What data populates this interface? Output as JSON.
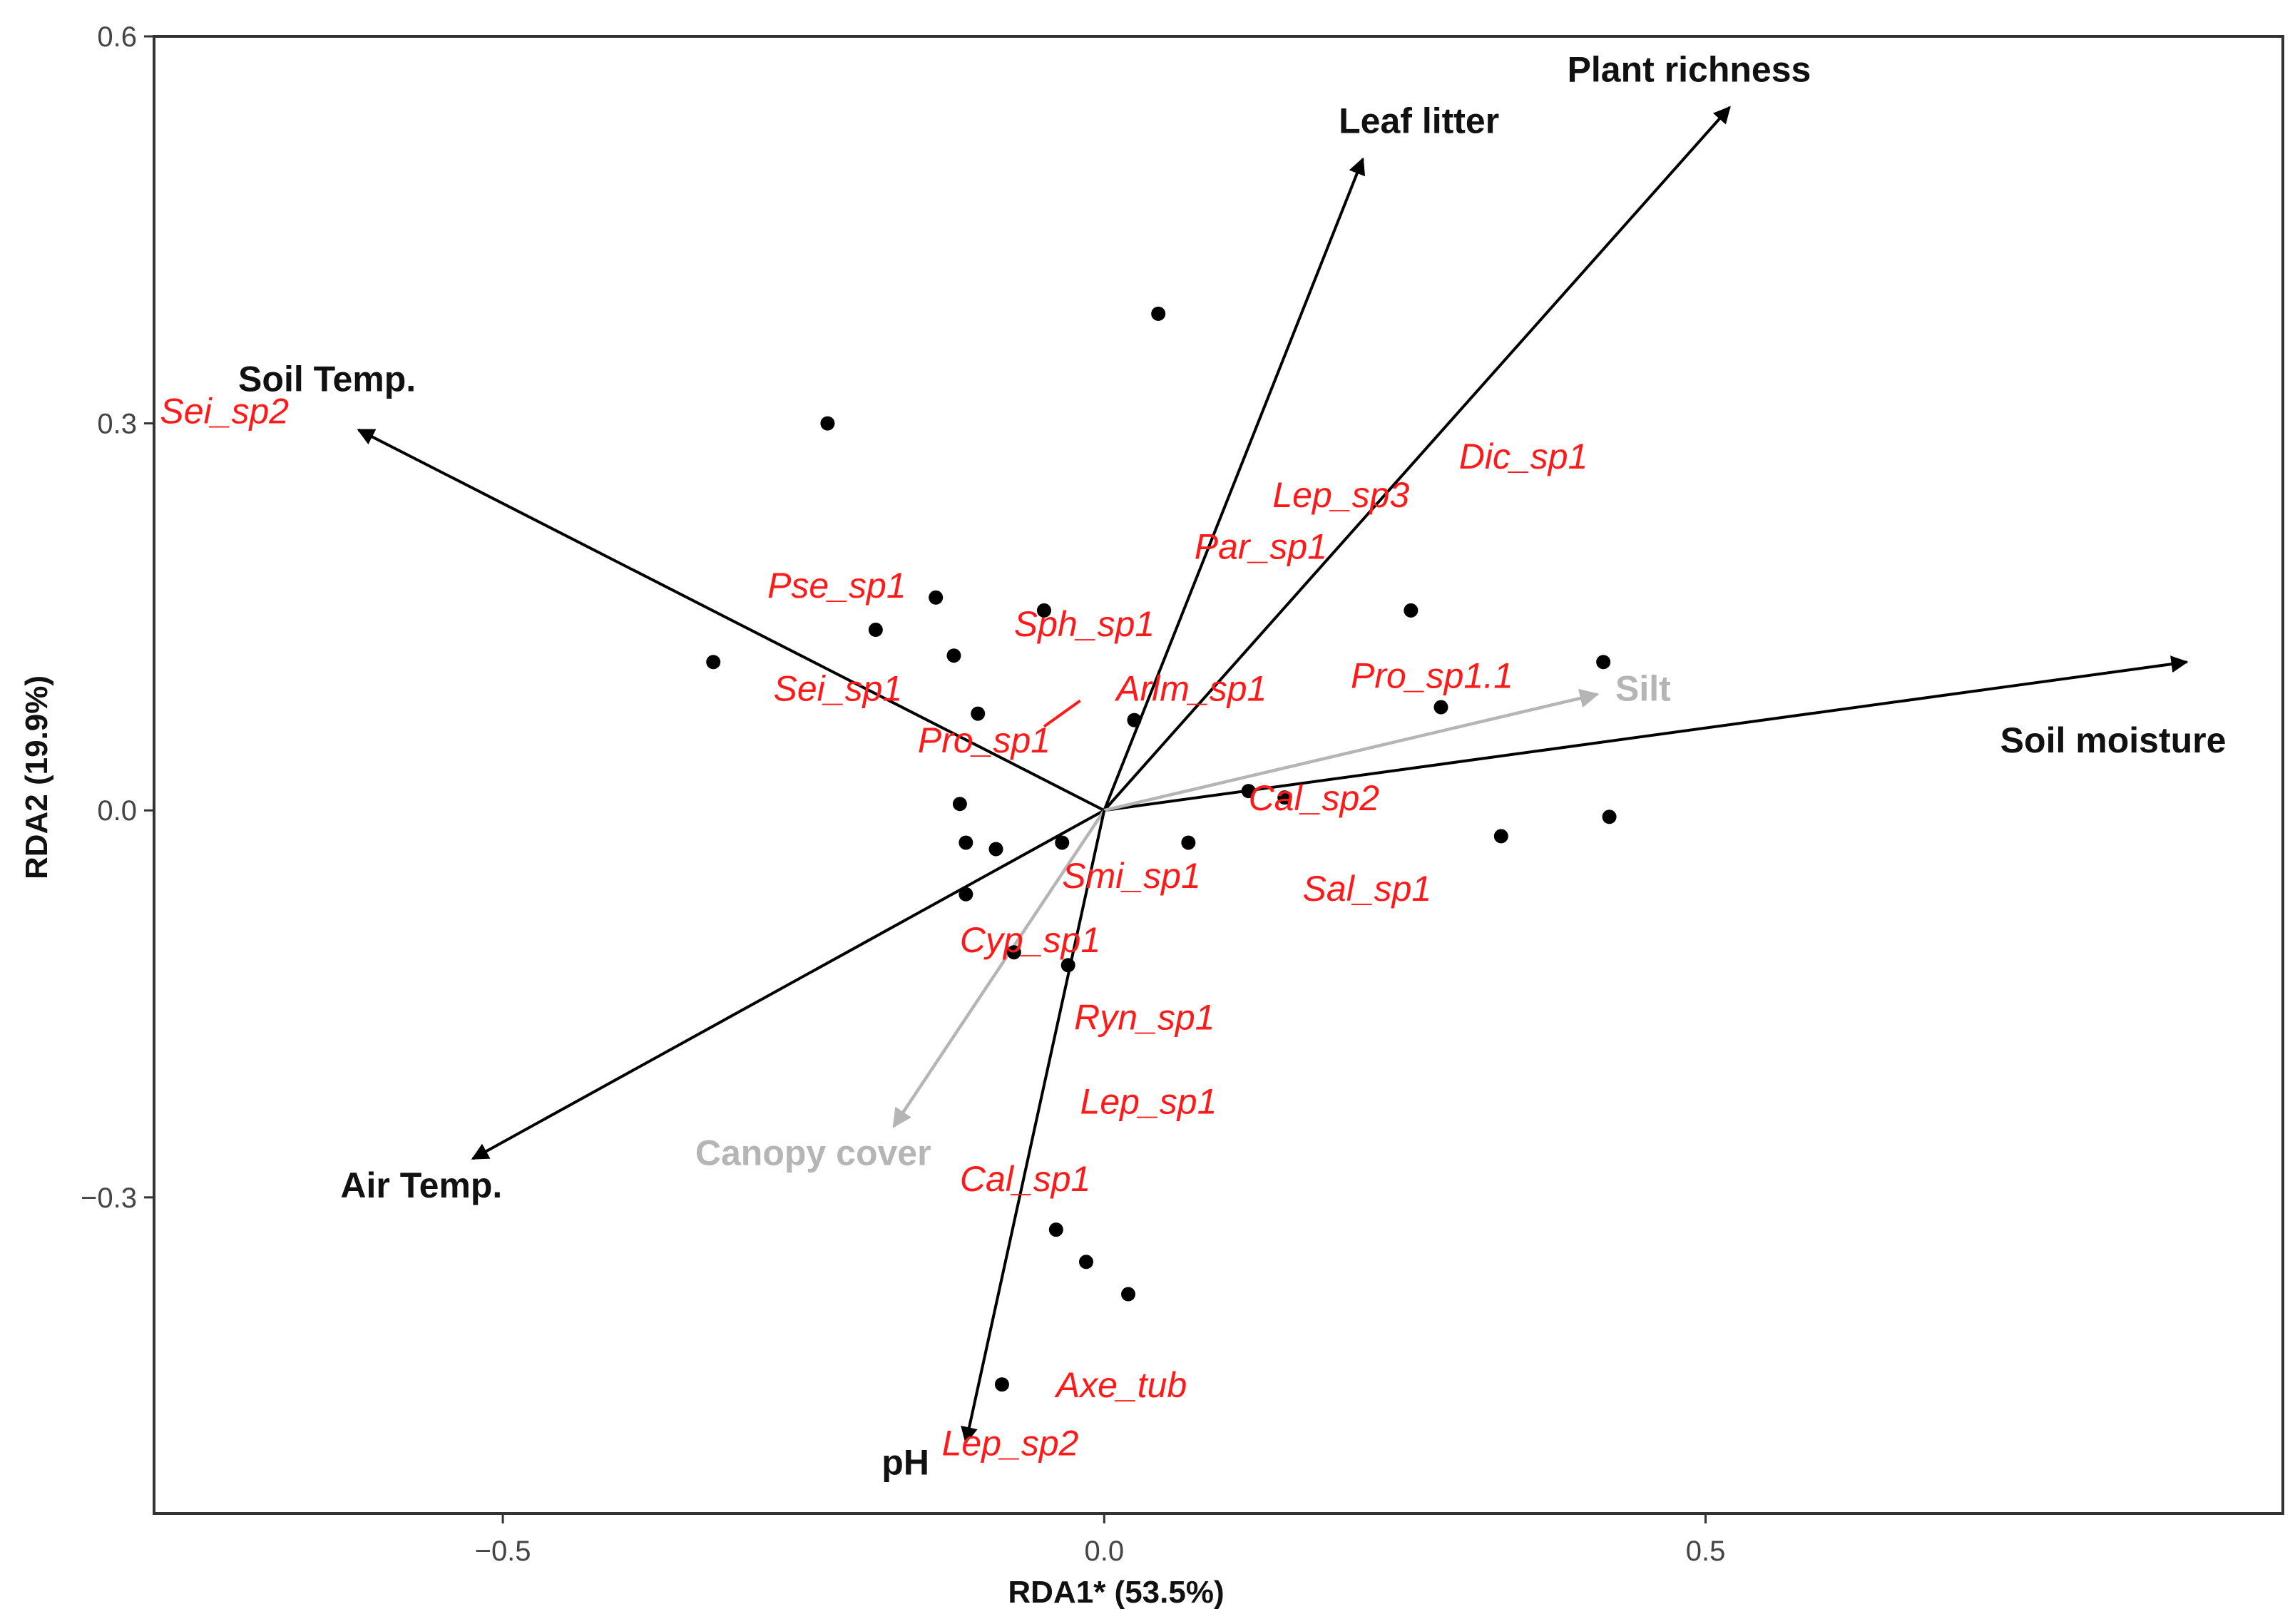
{
  "chart_data": {
    "type": "scatter",
    "subtype": "rda-biplot",
    "title": "",
    "xlabel": "RDA1* (53.5%)",
    "ylabel": "RDA2 (19.9%)",
    "xlim": [
      -0.79,
      0.98
    ],
    "ylim": [
      -0.545,
      0.6
    ],
    "x_ticks": [
      -0.5,
      0.0,
      0.5
    ],
    "x_tick_labels": [
      "−0.5",
      "0.0",
      "0.5"
    ],
    "y_ticks": [
      -0.3,
      0.0,
      0.3,
      0.6
    ],
    "y_tick_labels": [
      "−0.3",
      "0.0",
      "0.3",
      "0.6"
    ],
    "grid": false,
    "colors": {
      "arrow_black": "#000000",
      "arrow_grey": "#b5b5b5",
      "species": "#ff1a1a",
      "points": "#000000",
      "frame": "#333333"
    },
    "vectors": [
      {
        "name": "Leaf litter",
        "x": 0.215,
        "y": 0.505,
        "color": "black",
        "label_x": 0.195,
        "label_y": 0.525
      },
      {
        "name": "Plant richness",
        "x": 0.52,
        "y": 0.545,
        "color": "black",
        "label_x": 0.385,
        "label_y": 0.565
      },
      {
        "name": "Soil Temp.",
        "x": -0.62,
        "y": 0.295,
        "color": "black",
        "label_x": -0.72,
        "label_y": 0.325
      },
      {
        "name": "Soil moisture",
        "x": 0.9,
        "y": 0.115,
        "color": "black",
        "label_x": 0.745,
        "label_y": 0.045
      },
      {
        "name": "Silt",
        "x": 0.41,
        "y": 0.09,
        "color": "grey",
        "label_x": 0.425,
        "label_y": 0.085
      },
      {
        "name": "Air Temp.",
        "x": -0.525,
        "y": -0.27,
        "color": "black",
        "label_x": -0.635,
        "label_y": -0.3
      },
      {
        "name": "Canopy cover",
        "x": -0.175,
        "y": -0.245,
        "color": "grey",
        "label_x": -0.34,
        "label_y": -0.275
      },
      {
        "name": "pH",
        "x": -0.115,
        "y": -0.49,
        "color": "black",
        "label_x": -0.185,
        "label_y": -0.515
      }
    ],
    "species": [
      {
        "name": "Sei_sp2",
        "x": -0.785,
        "y": 0.3
      },
      {
        "name": "Dic_sp1",
        "x": 0.295,
        "y": 0.265
      },
      {
        "name": "Lep_sp3",
        "x": 0.14,
        "y": 0.235
      },
      {
        "name": "Par_sp1",
        "x": 0.075,
        "y": 0.195
      },
      {
        "name": "Pse_sp1",
        "x": -0.28,
        "y": 0.165
      },
      {
        "name": "Sph_sp1",
        "x": -0.075,
        "y": 0.135
      },
      {
        "name": "Sei_sp1",
        "x": -0.275,
        "y": 0.085
      },
      {
        "name": "Arlm_sp1",
        "x": 0.01,
        "y": 0.085
      },
      {
        "name": "Pro_sp1.1",
        "x": 0.205,
        "y": 0.095
      },
      {
        "name": "Pro_sp1",
        "x": -0.155,
        "y": 0.045
      },
      {
        "name": "Cal_sp2",
        "x": 0.12,
        "y": 0.0
      },
      {
        "name": "Smi_sp1",
        "x": -0.035,
        "y": -0.06
      },
      {
        "name": "Sal_sp1",
        "x": 0.165,
        "y": -0.07
      },
      {
        "name": "Cyp_sp1",
        "x": -0.12,
        "y": -0.11
      },
      {
        "name": "Ryn_sp1",
        "x": -0.025,
        "y": -0.17
      },
      {
        "name": "Lep_sp1",
        "x": -0.02,
        "y": -0.235
      },
      {
        "name": "Cal_sp1",
        "x": -0.12,
        "y": -0.295
      },
      {
        "name": "Axe_tub",
        "x": -0.04,
        "y": -0.455
      },
      {
        "name": "Lep_sp2",
        "x": -0.135,
        "y": -0.5
      }
    ],
    "sites": [
      {
        "x": 0.045,
        "y": 0.385
      },
      {
        "x": -0.23,
        "y": 0.3
      },
      {
        "x": -0.14,
        "y": 0.165
      },
      {
        "x": -0.19,
        "y": 0.14
      },
      {
        "x": -0.05,
        "y": 0.155
      },
      {
        "x": -0.125,
        "y": 0.12
      },
      {
        "x": -0.325,
        "y": 0.115
      },
      {
        "x": -0.105,
        "y": 0.075
      },
      {
        "x": 0.025,
        "y": 0.07
      },
      {
        "x": 0.255,
        "y": 0.155
      },
      {
        "x": 0.415,
        "y": 0.115
      },
      {
        "x": 0.28,
        "y": 0.08
      },
      {
        "x": -0.12,
        "y": 0.005
      },
      {
        "x": -0.115,
        "y": -0.025
      },
      {
        "x": -0.09,
        "y": -0.03
      },
      {
        "x": -0.035,
        "y": -0.025
      },
      {
        "x": 0.07,
        "y": -0.025
      },
      {
        "x": 0.12,
        "y": 0.015
      },
      {
        "x": 0.15,
        "y": 0.01
      },
      {
        "x": 0.33,
        "y": -0.02
      },
      {
        "x": 0.42,
        "y": -0.005
      },
      {
        "x": -0.115,
        "y": -0.065
      },
      {
        "x": -0.075,
        "y": -0.11
      },
      {
        "x": -0.03,
        "y": -0.12
      },
      {
        "x": -0.04,
        "y": -0.325
      },
      {
        "x": -0.015,
        "y": -0.35
      },
      {
        "x": 0.02,
        "y": -0.375
      },
      {
        "x": -0.085,
        "y": -0.445
      }
    ],
    "stray_marks": [
      {
        "x1": -0.05,
        "y1": 0.065,
        "x2": -0.02,
        "y2": 0.085,
        "color": "red"
      }
    ]
  }
}
